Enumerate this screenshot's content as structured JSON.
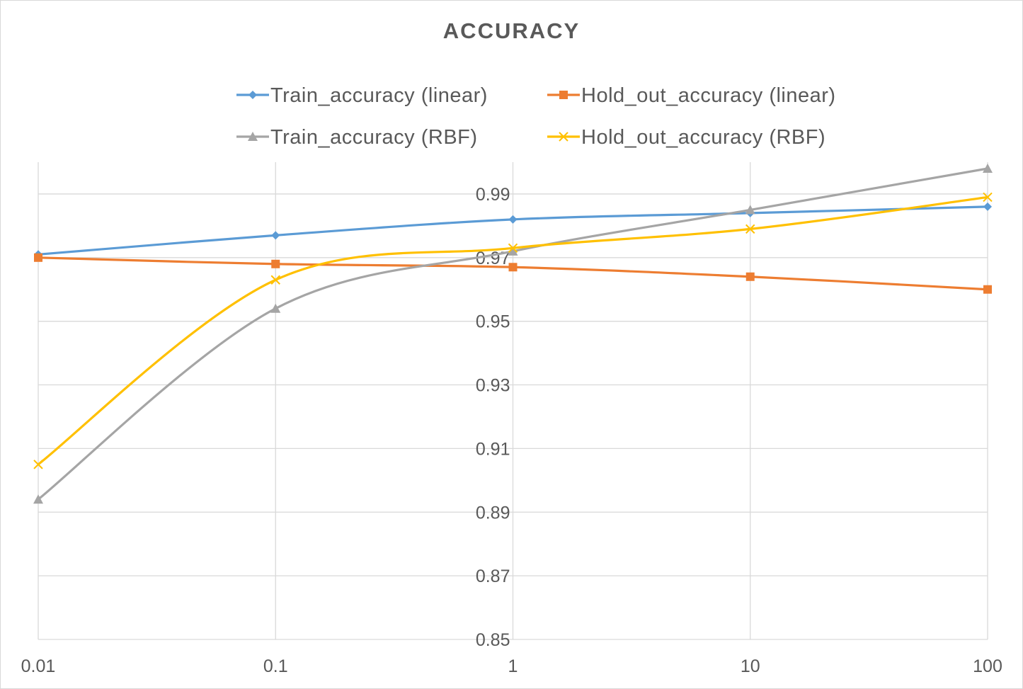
{
  "chart_data": {
    "type": "line",
    "title": "ACCURACY",
    "xlabel": "",
    "ylabel": "",
    "x_scale": "log",
    "x": [
      0.01,
      0.1,
      1,
      10,
      100
    ],
    "x_tick_labels": [
      "0.01",
      "0.1",
      "1",
      "10",
      "100"
    ],
    "ylim": [
      0.85,
      0.99
    ],
    "y_ticks": [
      0.85,
      0.87,
      0.89,
      0.91,
      0.93,
      0.95,
      0.97,
      0.99
    ],
    "y_tick_labels": [
      "0.85",
      "0.87",
      "0.89",
      "0.91",
      "0.93",
      "0.95",
      "0.97",
      "0.99"
    ],
    "grid": "horizontal and vertical",
    "legend_position": "top",
    "series": [
      {
        "name": "Train_accuracy (linear)",
        "values": [
          0.971,
          0.977,
          0.982,
          0.984,
          0.986
        ],
        "color": "#5b9bd5",
        "marker": "diamond",
        "smooth": true
      },
      {
        "name": "Hold_out_accuracy (linear)",
        "values": [
          0.97,
          0.968,
          0.967,
          0.964,
          0.96
        ],
        "color": "#ed7d31",
        "marker": "square",
        "smooth": true
      },
      {
        "name": "Train_accuracy (RBF)",
        "values": [
          0.894,
          0.954,
          0.972,
          0.985,
          0.998
        ],
        "color": "#a5a5a5",
        "marker": "triangle",
        "smooth": true
      },
      {
        "name": "Hold_out_accuracy (RBF)",
        "values": [
          0.905,
          0.963,
          0.973,
          0.979,
          0.989
        ],
        "color": "#ffc000",
        "marker": "x",
        "smooth": true
      }
    ]
  }
}
